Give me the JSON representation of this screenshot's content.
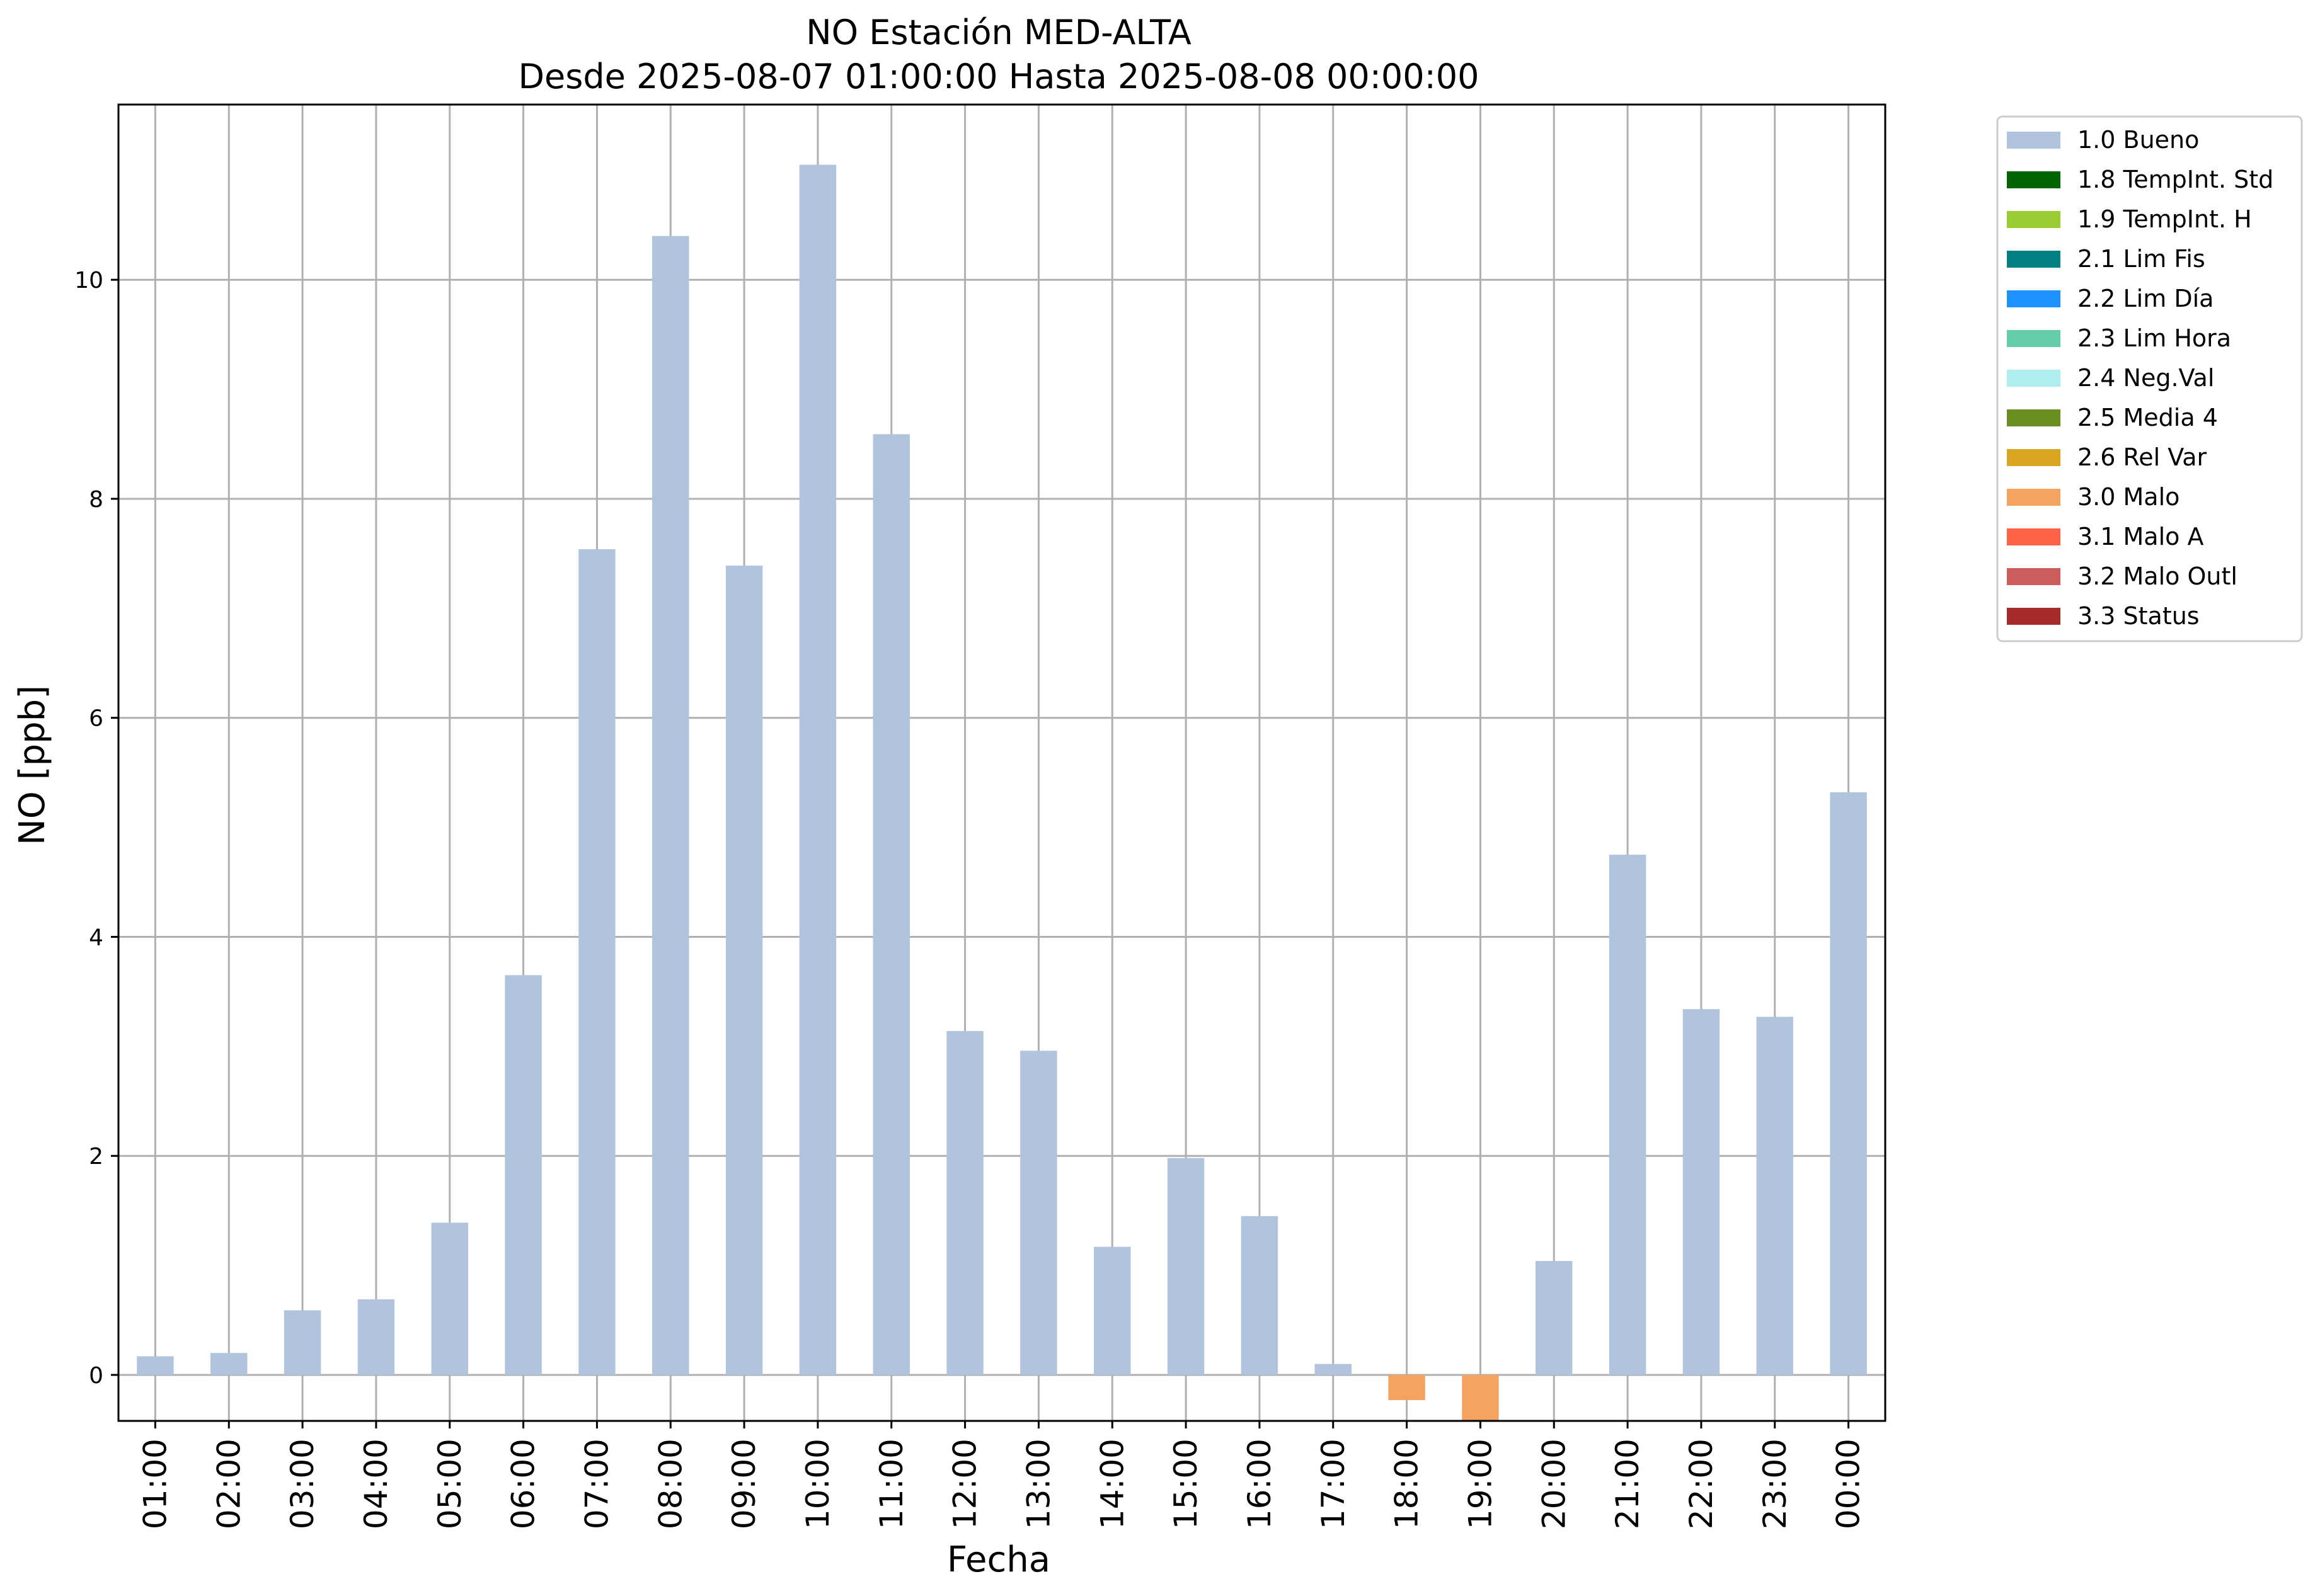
{
  "chart_data": {
    "type": "bar",
    "title": "NO Estación MED-ALTA",
    "subtitle": "Desde 2025-08-07 01:00:00 Hasta 2025-08-08 00:00:00",
    "xlabel": "Fecha",
    "ylabel": "NO [ppb]",
    "ylim": [
      -0.42,
      11.6
    ],
    "yticks": [
      0,
      2,
      4,
      6,
      8,
      10
    ],
    "grid": true,
    "legend_placement": "outside-top-right",
    "categories": [
      "01:00",
      "02:00",
      "03:00",
      "04:00",
      "05:00",
      "06:00",
      "07:00",
      "08:00",
      "09:00",
      "10:00",
      "11:00",
      "12:00",
      "13:00",
      "14:00",
      "15:00",
      "16:00",
      "17:00",
      "18:00",
      "19:00",
      "20:00",
      "21:00",
      "22:00",
      "23:00",
      "00:00"
    ],
    "values": [
      0.17,
      0.2,
      0.59,
      0.69,
      1.39,
      3.65,
      7.54,
      10.4,
      7.39,
      11.05,
      8.59,
      3.14,
      2.96,
      1.17,
      1.98,
      1.45,
      0.1,
      -0.23,
      -0.42,
      1.04,
      4.75,
      3.34,
      3.27,
      5.32
    ],
    "flags": [
      "1.0 Bueno",
      "1.0 Bueno",
      "1.0 Bueno",
      "1.0 Bueno",
      "1.0 Bueno",
      "1.0 Bueno",
      "1.0 Bueno",
      "1.0 Bueno",
      "1.0 Bueno",
      "1.0 Bueno",
      "1.0 Bueno",
      "1.0 Bueno",
      "1.0 Bueno",
      "1.0 Bueno",
      "1.0 Bueno",
      "1.0 Bueno",
      "1.0 Bueno",
      "3.0 Malo",
      "3.0 Malo",
      "1.0 Bueno",
      "1.0 Bueno",
      "1.0 Bueno",
      "1.0 Bueno",
      "1.0 Bueno"
    ],
    "legend": [
      {
        "label": "1.0 Bueno",
        "color": "#b0c4de"
      },
      {
        "label": "1.8 TempInt. Std",
        "color": "#006400"
      },
      {
        "label": "1.9 TempInt. H",
        "color": "#9acd32"
      },
      {
        "label": "2.1 Lim Fis",
        "color": "#008080"
      },
      {
        "label": "2.2 Lim Día",
        "color": "#1e90ff"
      },
      {
        "label": "2.3 Lim Hora",
        "color": "#66cdaa"
      },
      {
        "label": "2.4 Neg.Val",
        "color": "#afeeee"
      },
      {
        "label": "2.5 Media 4",
        "color": "#6b8e23"
      },
      {
        "label": "2.6 Rel Var",
        "color": "#daa520"
      },
      {
        "label": "3.0 Malo",
        "color": "#f4a460"
      },
      {
        "label": "3.1 Malo A",
        "color": "#ff6347"
      },
      {
        "label": "3.2 Malo Outl",
        "color": "#cd5c5c"
      },
      {
        "label": "3.3 Status",
        "color": "#a52a2a"
      }
    ]
  }
}
